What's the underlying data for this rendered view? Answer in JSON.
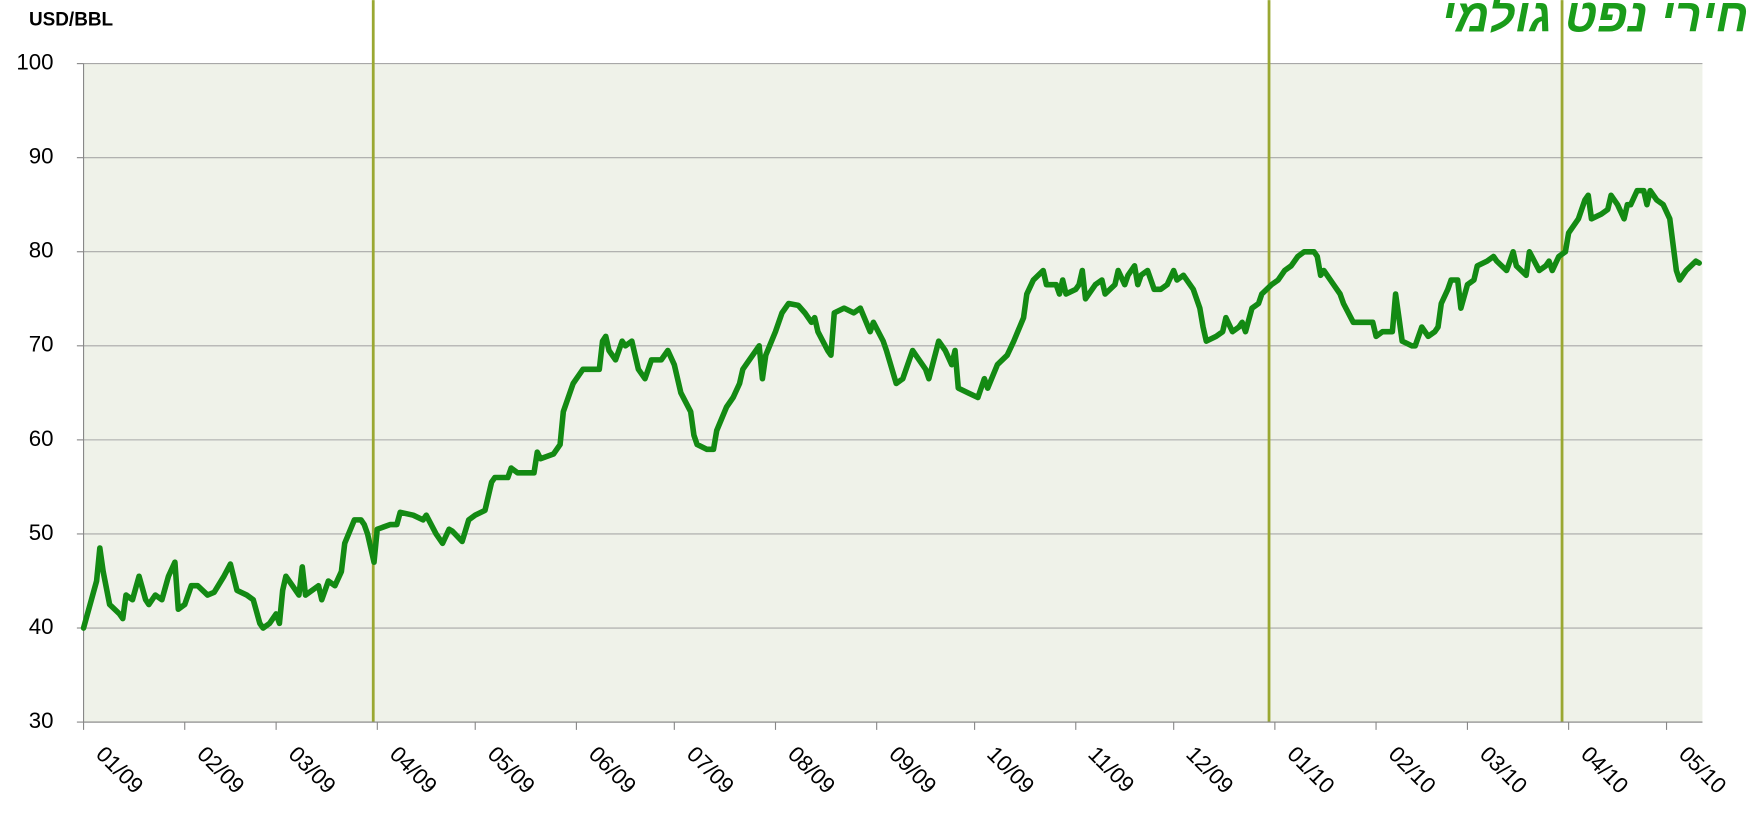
{
  "chart_data": {
    "type": "line",
    "title": "מחירי נפט גולמי",
    "ylabel": "USD/BBL",
    "color": "#138a13",
    "xlim": [
      0,
      496
    ],
    "ylim": [
      30,
      100
    ],
    "yticks": [
      30,
      40,
      50,
      60,
      70,
      80,
      90,
      100
    ],
    "xticks": [
      {
        "value": 0,
        "label": "01/09"
      },
      {
        "value": 31,
        "label": "02/09"
      },
      {
        "value": 59,
        "label": "03/09"
      },
      {
        "value": 90,
        "label": "04/09"
      },
      {
        "value": 120,
        "label": "05/09"
      },
      {
        "value": 151,
        "label": "06/09"
      },
      {
        "value": 181,
        "label": "07/09"
      },
      {
        "value": 212,
        "label": "08/09"
      },
      {
        "value": 243,
        "label": "09/09"
      },
      {
        "value": 273,
        "label": "10/09"
      },
      {
        "value": 304,
        "label": "11/09"
      },
      {
        "value": 334,
        "label": "12/09"
      },
      {
        "value": 365,
        "label": "01/10"
      },
      {
        "value": 396,
        "label": "02/10"
      },
      {
        "value": 424,
        "label": "03/10"
      },
      {
        "value": 455,
        "label": "04/10"
      },
      {
        "value": 485,
        "label": "05/10"
      }
    ],
    "grid": true,
    "x": [
      0,
      4,
      5,
      6,
      8,
      11,
      12,
      13,
      15,
      17,
      19,
      20,
      22,
      24,
      26,
      28,
      29,
      31,
      33,
      35,
      38,
      40,
      43,
      45,
      47,
      50,
      52,
      54,
      55,
      57,
      59,
      60,
      61,
      62,
      64,
      66,
      67,
      68,
      70,
      72,
      73,
      75,
      77,
      79,
      80,
      83,
      85,
      86,
      87,
      88,
      89,
      90,
      94,
      96,
      97,
      101,
      104,
      105,
      108,
      110,
      112,
      113,
      116,
      118,
      120,
      123,
      125,
      126,
      130,
      131,
      133,
      136,
      138,
      139,
      140,
      144,
      146,
      147,
      150,
      153,
      154,
      158,
      159,
      160,
      161,
      163,
      165,
      166,
      168,
      170,
      172,
      174,
      177,
      179,
      181,
      183,
      186,
      187,
      188,
      191,
      193,
      194,
      197,
      199,
      201,
      202,
      204,
      206,
      207,
      208,
      209,
      212,
      214,
      216,
      219,
      221,
      223,
      224,
      225,
      228,
      229,
      230,
      233,
      236,
      238,
      241,
      242,
      245,
      246,
      249,
      251,
      254,
      255,
      258,
      259,
      262,
      264,
      266,
      267,
      268,
      271,
      274,
      276,
      277,
      280,
      283,
      285,
      288,
      289,
      291,
      294,
      295,
      298,
      299,
      300,
      301,
      304,
      305,
      306,
      307,
      310,
      312,
      313,
      316,
      317,
      319,
      320,
      322,
      323,
      324,
      326,
      328,
      330,
      332,
      334,
      335,
      337,
      340,
      342,
      343,
      344,
      347,
      349,
      350,
      352,
      354,
      355,
      356,
      358,
      360,
      361,
      364,
      366,
      368,
      370,
      372,
      374,
      377,
      378,
      379,
      380,
      383,
      385,
      386,
      389,
      391,
      395,
      396,
      398,
      401,
      402,
      403,
      404,
      407,
      408,
      410,
      412,
      414,
      415,
      416,
      418,
      419,
      421,
      422,
      424,
      426,
      427,
      430,
      432,
      433,
      436,
      437,
      438,
      439,
      442,
      443,
      446,
      448,
      449,
      450,
      452,
      454,
      455,
      458,
      460,
      461,
      462,
      465,
      467,
      468,
      470,
      472,
      473,
      474,
      476,
      478,
      479,
      480,
      482,
      484,
      486,
      488,
      489,
      491,
      494,
      495
    ],
    "values": [
      40,
      45,
      48.5,
      46,
      42.5,
      41.5,
      41,
      43.5,
      43,
      45.5,
      43,
      42.5,
      43.5,
      43,
      45.5,
      47,
      42,
      42.5,
      44.5,
      44.5,
      43.5,
      43.8,
      45.5,
      46.8,
      44,
      43.5,
      43,
      40.5,
      40,
      40.5,
      41.5,
      40.5,
      44,
      45.5,
      44.5,
      43.5,
      46.5,
      43.5,
      44,
      44.5,
      43,
      45,
      44.5,
      46,
      49,
      51.5,
      51.5,
      51,
      50,
      48.5,
      47,
      50.5,
      51,
      51,
      52.3,
      52,
      51.5,
      52,
      50,
      49,
      50.5,
      50.3,
      49.2,
      51.5,
      52,
      52.5,
      55.5,
      56,
      56,
      57,
      56.5,
      56.5,
      56.5,
      58.7,
      58,
      58.5,
      59.5,
      63,
      66,
      67.5,
      67.5,
      67.5,
      70.5,
      71,
      69.5,
      68.5,
      70.5,
      70,
      70.5,
      67.5,
      66.5,
      68.5,
      68.5,
      69.5,
      68,
      65,
      63,
      60.5,
      59.5,
      59,
      59,
      61,
      63.5,
      64.5,
      66,
      67.5,
      68.5,
      69.5,
      70,
      66.5,
      69,
      71.5,
      73.5,
      74.5,
      74.3,
      73.5,
      72.5,
      73,
      71.5,
      69.5,
      69,
      73.5,
      74,
      73.5,
      74,
      71.5,
      72.5,
      70.5,
      69.5,
      66,
      66.5,
      69.5,
      69,
      67.5,
      66.5,
      70.5,
      69.5,
      68,
      69.5,
      65.5,
      65,
      64.5,
      66.5,
      65.5,
      68,
      69,
      70.5,
      73,
      75.5,
      77,
      78,
      76.5,
      76.5,
      75.5,
      77,
      75.5,
      76,
      76.5,
      78,
      75,
      76.5,
      77,
      75.5,
      76.5,
      78,
      76.5,
      77.5,
      78.5,
      76.5,
      77.5,
      78,
      76,
      76,
      76.5,
      78,
      77,
      77.5,
      76,
      74,
      72,
      70.5,
      71,
      71.5,
      73,
      71.5,
      72,
      72.5,
      71.5,
      74,
      74.5,
      75.5,
      76.5,
      77,
      78,
      78.5,
      79.5,
      80,
      80,
      79.5,
      77.5,
      78,
      76.5,
      75.5,
      74.5,
      72.5,
      72.5,
      72.5,
      71,
      71.5,
      71.5,
      75.5,
      73,
      70.5,
      70,
      70,
      72,
      71,
      71.5,
      72,
      74.5,
      76,
      77,
      77,
      74,
      76.5,
      77,
      78.5,
      79,
      79.5,
      79,
      78,
      79,
      80,
      78.5,
      77.5,
      80,
      78,
      78.5,
      79,
      78,
      79.5,
      80,
      82,
      83.5,
      85.5,
      86,
      83.5,
      84,
      84.5,
      86,
      85,
      83.5,
      85,
      85,
      86.5,
      86.5,
      85,
      86.5,
      85.5,
      85,
      83.5,
      78,
      77,
      78,
      79,
      78.8
    ]
  }
}
